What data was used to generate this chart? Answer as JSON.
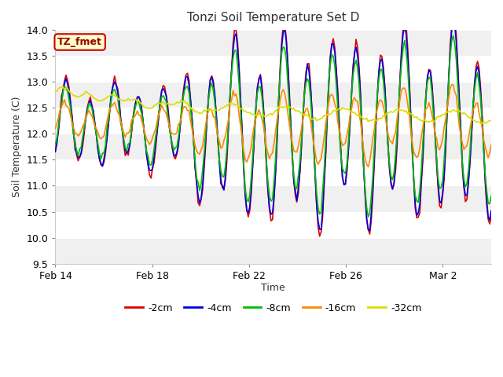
{
  "title": "Tonzi Soil Temperature Set D",
  "xlabel": "Time",
  "ylabel": "Soil Temperature (C)",
  "ylim": [
    9.5,
    14.0
  ],
  "yticks": [
    9.5,
    10.0,
    10.5,
    11.0,
    11.5,
    12.0,
    12.5,
    13.0,
    13.5,
    14.0
  ],
  "series_colors": [
    "#dd0000",
    "#0000dd",
    "#00bb00",
    "#ff8800",
    "#dddd00"
  ],
  "series_labels": [
    "-2cm",
    "-4cm",
    "-8cm",
    "-16cm",
    "-32cm"
  ],
  "legend_label_box": "TZ_fmet",
  "legend_box_color": "#ffffcc",
  "legend_box_edge": "#cc0000",
  "legend_box_text_color": "#990000",
  "background_color": "#ffffff",
  "plot_bg_color": "#ffffff",
  "band_color_light": "#f0f0f0",
  "band_color_white": "#ffffff",
  "tick_positions": [
    0,
    4,
    8,
    12,
    16
  ],
  "tick_labels": [
    "Feb 14",
    "Feb 18",
    "Feb 22",
    "Feb 26",
    "Mar 2"
  ]
}
